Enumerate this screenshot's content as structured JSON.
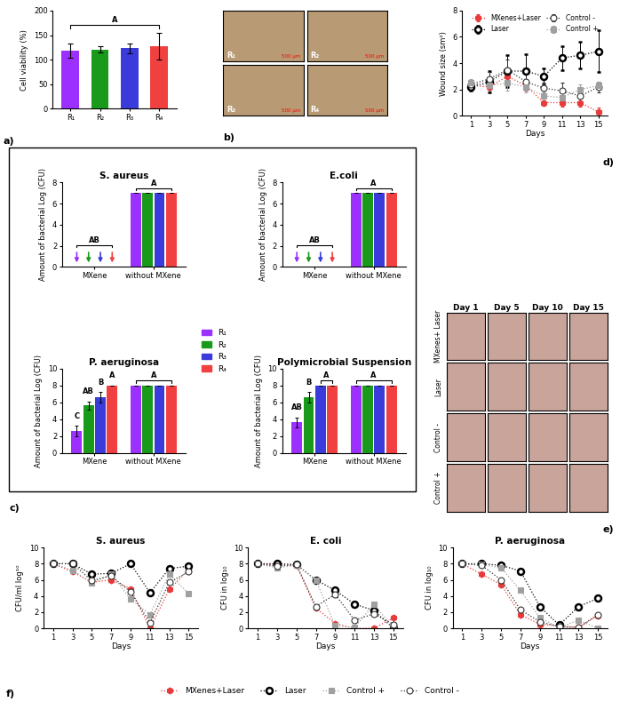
{
  "chart_data": [
    {
      "panel": "a)",
      "type": "bar",
      "categories": [
        "R₁",
        "R₂",
        "R₃",
        "R₄"
      ],
      "values": [
        118,
        121,
        123,
        127
      ],
      "errors": [
        14,
        6,
        10,
        27
      ],
      "colors": [
        "#9b30ff",
        "#1a9a1a",
        "#3b3bdc",
        "#f04040"
      ],
      "y_label": "Cell viability (%)",
      "ylim": [
        0,
        200
      ],
      "yticks": [
        0,
        50,
        100,
        150,
        200
      ],
      "annotations": [
        {
          "text": "A",
          "from": "R₁",
          "to": "R₄"
        }
      ]
    },
    {
      "panel": "b)",
      "type": "image_grid",
      "rows": [
        [
          "R₁",
          "R₂"
        ],
        [
          "R₃",
          "R₄"
        ]
      ],
      "scale_bar": "500 µm"
    },
    {
      "panel": "d)",
      "type": "line",
      "x": [
        1,
        3,
        5,
        7,
        9,
        11,
        13,
        15
      ],
      "x_label": "Days",
      "y_label": "Wound size (sm²)",
      "xlim": [
        0,
        16
      ],
      "ylim": [
        0,
        8
      ],
      "xticks": [
        1,
        3,
        5,
        7,
        9,
        11,
        13,
        15
      ],
      "yticks": [
        0,
        2,
        4,
        6,
        8
      ],
      "legend": "upper center",
      "series": [
        {
          "name": "MXenes+Laser",
          "color": "#e83a3a",
          "marker": "hexagon",
          "line_style": "dotted",
          "values": [
            2.3,
            2.2,
            3.0,
            2.3,
            1.0,
            1.0,
            1.0,
            0.3
          ],
          "errors": [
            0.3,
            0.3,
            0.5,
            0.4,
            0.2,
            0.3,
            0.3,
            0.3
          ]
        },
        {
          "name": "Laser",
          "color": "#000000",
          "marker": "bold_circle",
          "line_style": "dotted",
          "values": [
            2.2,
            2.6,
            3.4,
            3.4,
            3.0,
            4.4,
            4.6,
            4.9
          ],
          "errors": [
            0.3,
            0.8,
            1.2,
            1.3,
            0.6,
            0.9,
            1.0,
            1.6
          ]
        },
        {
          "name": "Control -",
          "color": "#333333",
          "marker": "circle",
          "line_style": "dotted",
          "values": [
            2.4,
            2.8,
            3.5,
            2.6,
            2.1,
            1.9,
            1.5,
            2.2
          ],
          "errors": [
            0.3,
            0.5,
            0.8,
            0.6,
            0.4,
            0.6,
            0.5,
            0.4
          ]
        },
        {
          "name": "Control +",
          "color": "#a0a0a0",
          "marker": "square",
          "line_style": "dotted",
          "values": [
            2.5,
            2.3,
            2.5,
            2.2,
            1.5,
            1.4,
            2.0,
            2.3
          ],
          "errors": [
            0.3,
            0.4,
            0.6,
            0.4,
            0.3,
            0.4,
            0.4,
            0.3
          ]
        }
      ]
    },
    {
      "panel": "c)",
      "type": "bar",
      "title": "S. aureus",
      "categories": [
        "MXene",
        "without MXene"
      ],
      "y_label": "Amount of bacterial Log (CFU)",
      "ylim": [
        0,
        8
      ],
      "yticks": [
        0,
        2,
        4,
        6,
        8
      ],
      "legend": "center",
      "series": [
        {
          "name": "R₁",
          "color": "#9b30ff",
          "values": [
            0,
            7
          ],
          "errors": [
            0,
            0
          ]
        },
        {
          "name": "R₂",
          "color": "#1a9a1a",
          "values": [
            0,
            7
          ],
          "errors": [
            0,
            0
          ]
        },
        {
          "name": "R₃",
          "color": "#3b3bdc",
          "values": [
            0,
            7
          ],
          "errors": [
            0,
            0
          ]
        },
        {
          "name": "R₄",
          "color": "#f04040",
          "values": [
            0,
            7
          ],
          "errors": [
            0,
            0
          ]
        }
      ],
      "annotations": [
        {
          "text": "AB",
          "group": "MXene",
          "from": "R₁",
          "to": "R₄"
        },
        {
          "text": "A",
          "group": "without MXene",
          "from": "R₁",
          "to": "R₄"
        }
      ]
    },
    {
      "type": "bar",
      "title": "E.coli",
      "categories": [
        "MXene",
        "without MXene"
      ],
      "y_label": "Amount of bacterial Log (CFU)",
      "ylim": [
        0,
        8
      ],
      "yticks": [
        0,
        2,
        4,
        6,
        8
      ],
      "series": [
        {
          "name": "R₁",
          "color": "#9b30ff",
          "values": [
            0,
            7
          ],
          "errors": [
            0,
            0
          ]
        },
        {
          "name": "R₂",
          "color": "#1a9a1a",
          "values": [
            0,
            7
          ],
          "errors": [
            0,
            0
          ]
        },
        {
          "name": "R₃",
          "color": "#3b3bdc",
          "values": [
            0,
            7
          ],
          "errors": [
            0,
            0
          ]
        },
        {
          "name": "R₄",
          "color": "#f04040",
          "values": [
            0,
            7
          ],
          "errors": [
            0,
            0
          ]
        }
      ],
      "annotations": [
        {
          "text": "AB",
          "group": "MXene",
          "from": "R₁",
          "to": "R₄"
        },
        {
          "text": "A",
          "group": "without MXene",
          "from": "R₁",
          "to": "R₄"
        }
      ]
    },
    {
      "type": "bar",
      "title": "P. aeruginosa",
      "categories": [
        "MXene",
        "without MXene"
      ],
      "y_label": "Amount of bacterial Log (CFU)",
      "ylim": [
        0,
        10
      ],
      "yticks": [
        0,
        2,
        4,
        6,
        8,
        10
      ],
      "series": [
        {
          "name": "R₁",
          "color": "#9b30ff",
          "values": [
            2.6,
            8
          ],
          "errors": [
            0.6,
            0
          ]
        },
        {
          "name": "R₂",
          "color": "#1a9a1a",
          "values": [
            5.6,
            8
          ],
          "errors": [
            0.5,
            0
          ]
        },
        {
          "name": "R₃",
          "color": "#3b3bdc",
          "values": [
            6.6,
            8
          ],
          "errors": [
            0.6,
            0
          ]
        },
        {
          "name": "R₄",
          "color": "#f04040",
          "values": [
            8,
            8
          ],
          "errors": [
            0,
            0
          ]
        }
      ],
      "annotations": [
        {
          "text": "C",
          "group": "MXene",
          "from": "R₁",
          "to": "R₁"
        },
        {
          "text": "AB",
          "group": "MXene",
          "from": "R₂",
          "to": "R₂"
        },
        {
          "text": "B",
          "group": "MXene",
          "from": "R₃",
          "to": "R₃"
        },
        {
          "text": "A",
          "group": "MXene",
          "from": "R₄",
          "to": "R₄"
        },
        {
          "text": "A",
          "group": "without MXene",
          "from": "R₁",
          "to": "R₄"
        }
      ]
    },
    {
      "type": "bar",
      "title": "Polymicrobial Suspension",
      "categories": [
        "MXene",
        "without MXene"
      ],
      "y_label": "Amount of bacterial Log (CFU)",
      "ylim": [
        0,
        10
      ],
      "yticks": [
        0,
        2,
        4,
        6,
        8,
        10
      ],
      "series": [
        {
          "name": "R₁",
          "color": "#9b30ff",
          "values": [
            3.6,
            8
          ],
          "errors": [
            0.6,
            0
          ]
        },
        {
          "name": "R₂",
          "color": "#1a9a1a",
          "values": [
            6.6,
            8
          ],
          "errors": [
            0.6,
            0
          ]
        },
        {
          "name": "R₃",
          "color": "#3b3bdc",
          "values": [
            8,
            8
          ],
          "errors": [
            0,
            0
          ]
        },
        {
          "name": "R₄",
          "color": "#f04040",
          "values": [
            8,
            8
          ],
          "errors": [
            0,
            0
          ]
        }
      ],
      "annotations": [
        {
          "text": "AB",
          "group": "MXene",
          "from": "R₁",
          "to": "R₁"
        },
        {
          "text": "B",
          "group": "MXene",
          "from": "R₂",
          "to": "R₂"
        },
        {
          "text": "A",
          "group": "MXene",
          "from": "R₃",
          "to": "R₄"
        },
        {
          "text": "A",
          "group": "without MXene",
          "from": "R₁",
          "to": "R₄"
        }
      ]
    },
    {
      "panel": "e)",
      "type": "image_grid",
      "rows": [
        "MXenes+ Laser",
        "Laser",
        "Control -",
        "Control +"
      ],
      "columns": [
        "Day 1",
        "Day 5",
        "Day 10",
        "Day 15"
      ]
    },
    {
      "panel": "f)",
      "type": "line",
      "title": "S. aureus",
      "x": [
        1,
        3,
        5,
        7,
        9,
        11,
        13,
        15
      ],
      "x_label": "Days",
      "y_label": "CFU/ml log¹⁰",
      "xlim": [
        0,
        16
      ],
      "ylim": [
        0,
        10
      ],
      "xticks": [
        1,
        3,
        5,
        7,
        9,
        11,
        13,
        15
      ],
      "yticks": [
        0,
        2,
        4,
        6,
        8,
        10
      ],
      "legend": "lower center",
      "series": [
        {
          "name": "MXenes+Laser",
          "color": "#e83a3a",
          "marker": "hexagon",
          "line_style": "dotted",
          "values": [
            8,
            7.0,
            5.7,
            6.0,
            4.9,
            0,
            4.8,
            7.3
          ]
        },
        {
          "name": "Laser",
          "color": "#000000",
          "marker": "bold_circle",
          "line_style": "dotted",
          "values": [
            8,
            8,
            6.7,
            6.8,
            8,
            4.4,
            7.4,
            7.7
          ]
        },
        {
          "name": "Control +",
          "color": "#a0a0a0",
          "marker": "square",
          "line_style": "dotted",
          "values": [
            8,
            7.2,
            5.6,
            6.7,
            3.6,
            1.7,
            6.7,
            4.3
          ]
        },
        {
          "name": "Control -",
          "color": "#333333",
          "marker": "circle",
          "line_style": "dotted",
          "values": [
            8,
            8,
            5.9,
            6.5,
            4.5,
            0.7,
            5.7,
            7.0
          ]
        }
      ]
    },
    {
      "type": "line",
      "title": "E. coli",
      "x": [
        1,
        3,
        5,
        7,
        9,
        11,
        13,
        15
      ],
      "x_label": "Days",
      "y_label": "CFU in log₁₀",
      "xlim": [
        0,
        16
      ],
      "ylim": [
        0,
        10
      ],
      "xticks": [
        1,
        3,
        5,
        7,
        9,
        11,
        13,
        15
      ],
      "yticks": [
        0,
        2,
        4,
        6,
        8,
        10
      ],
      "series": [
        {
          "name": "MXenes+Laser",
          "color": "#e83a3a",
          "marker": "hexagon",
          "line_style": "dotted",
          "values": [
            8,
            7.8,
            7.8,
            2.5,
            0.6,
            0,
            0,
            1.3
          ]
        },
        {
          "name": "Laser",
          "color": "#000000",
          "marker": "bold_circle",
          "line_style": "dotted",
          "values": [
            8,
            8,
            7.9,
            6,
            4.7,
            3,
            2.2,
            0
          ]
        },
        {
          "name": "Control +",
          "color": "#a0a0a0",
          "marker": "square",
          "line_style": "dotted",
          "values": [
            8,
            7.5,
            7.8,
            6,
            0.3,
            0.1,
            3.0,
            0
          ]
        },
        {
          "name": "Control -",
          "color": "#333333",
          "marker": "circle",
          "line_style": "dotted",
          "values": [
            8,
            7.7,
            7.9,
            2.7,
            4.2,
            1,
            1.8,
            0.5
          ]
        }
      ]
    },
    {
      "type": "line",
      "title": "P. aeruginosa",
      "x": [
        1,
        3,
        5,
        7,
        9,
        11,
        13,
        15
      ],
      "x_label": "Days",
      "y_label": "CFU in log₁₀",
      "xlim": [
        0,
        16
      ],
      "ylim": [
        0,
        10
      ],
      "xticks": [
        1,
        3,
        5,
        7,
        9,
        11,
        13,
        15
      ],
      "yticks": [
        0,
        2,
        4,
        6,
        8,
        10
      ],
      "series": [
        {
          "name": "MXenes+Laser",
          "color": "#e83a3a",
          "marker": "hexagon",
          "line_style": "dotted",
          "values": [
            8,
            6.7,
            5.4,
            1.7,
            0.5,
            0.3,
            0.1,
            1.6
          ]
        },
        {
          "name": "Laser",
          "color": "#000000",
          "marker": "bold_circle",
          "line_style": "dotted",
          "values": [
            8,
            8,
            7.8,
            7.1,
            2.7,
            0.4,
            2.7,
            3.7
          ]
        },
        {
          "name": "Control +",
          "color": "#a0a0a0",
          "marker": "square",
          "line_style": "dotted",
          "values": [
            8,
            7.9,
            7.5,
            4.7,
            1.3,
            0.1,
            1.0,
            0.0
          ]
        },
        {
          "name": "Control -",
          "color": "#333333",
          "marker": "circle",
          "line_style": "dotted",
          "values": [
            8,
            7.8,
            6.0,
            2.3,
            0.8,
            0.2,
            0.1,
            1.7
          ]
        }
      ]
    }
  ]
}
